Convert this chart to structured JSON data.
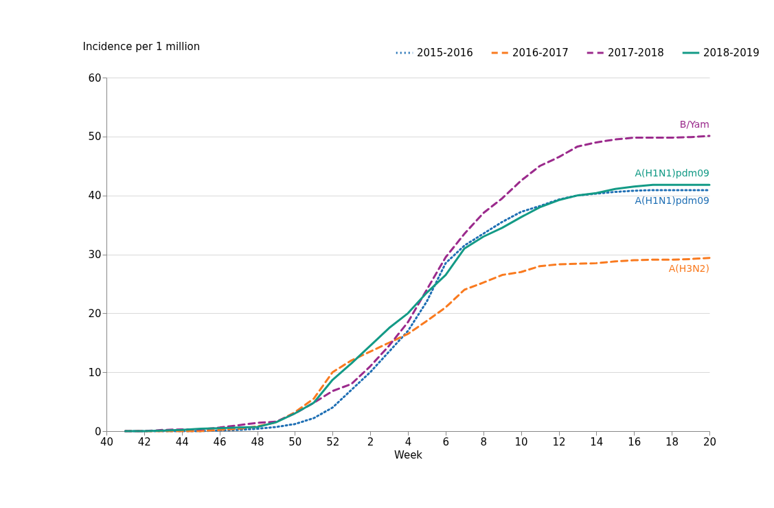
{
  "chart_data": {
    "type": "line",
    "xlabel": "Week",
    "ylabel": "Incidence per 1 million",
    "categories": [
      "40",
      null,
      "42",
      null,
      "44",
      null,
      "46",
      null,
      "48",
      null,
      "50",
      null,
      "52",
      null,
      "2",
      null,
      "4",
      null,
      "6",
      null,
      "8",
      null,
      "10",
      null,
      "12",
      null,
      "14",
      null,
      "16",
      null,
      "18",
      null,
      "20"
    ],
    "series": [
      {
        "name": "2015-2016",
        "color": "#1f6fb4",
        "line_style": "dotted",
        "values": [
          null,
          0,
          0,
          0,
          0,
          0,
          0.1,
          0.2,
          0.4,
          0.7,
          1.2,
          2.2,
          4,
          7,
          10,
          13.5,
          17,
          22,
          28.5,
          31.5,
          33.5,
          35.5,
          37.2,
          38.2,
          39.3,
          40,
          40.3,
          40.6,
          40.8,
          40.9,
          40.9,
          40.9,
          40.9
        ]
      },
      {
        "name": "2016-2017",
        "color": "#f97a1f",
        "line_style": "dashed",
        "values": [
          null,
          0,
          0,
          0,
          0,
          0,
          0.2,
          0.4,
          0.8,
          1.5,
          3.2,
          5.5,
          10,
          12,
          13.5,
          15,
          16.5,
          18.7,
          21,
          24,
          25.2,
          26.5,
          27,
          28,
          28.3,
          28.4,
          28.5,
          28.8,
          29,
          29.1,
          29.1,
          29.2,
          29.4
        ]
      },
      {
        "name": "2017-2018",
        "color": "#9b2a8c",
        "line_style": "dashed",
        "values": [
          null,
          0,
          0,
          0.2,
          0.3,
          0.3,
          0.6,
          1,
          1.4,
          1.6,
          3,
          4.8,
          6.8,
          8,
          11,
          14.5,
          18.5,
          24,
          29.5,
          33.5,
          37,
          39.5,
          42.5,
          45,
          46.5,
          48.3,
          49,
          49.5,
          49.8,
          49.8,
          49.8,
          49.9,
          50.1
        ]
      },
      {
        "name": "2018-2019",
        "color": "#139a86",
        "line_style": "solid",
        "values": [
          null,
          0,
          0,
          0.1,
          0.2,
          0.4,
          0.5,
          0.6,
          0.7,
          1.5,
          3,
          4.8,
          8.7,
          11.5,
          14.5,
          17.5,
          20,
          23.5,
          26.5,
          31,
          33,
          34.5,
          36.3,
          38,
          39.2,
          40,
          40.4,
          41.1,
          41.5,
          41.8,
          41.8,
          41.8,
          41.8
        ]
      }
    ],
    "ylim": [
      0,
      60
    ],
    "yticks": [
      0,
      10,
      20,
      30,
      40,
      50,
      60
    ],
    "grid": "y",
    "legend": "top right",
    "annotations": [
      "B/Yam",
      "A(H1N1)pdm09",
      "A(H1N1)pdm09",
      "A(H3N2)"
    ]
  }
}
